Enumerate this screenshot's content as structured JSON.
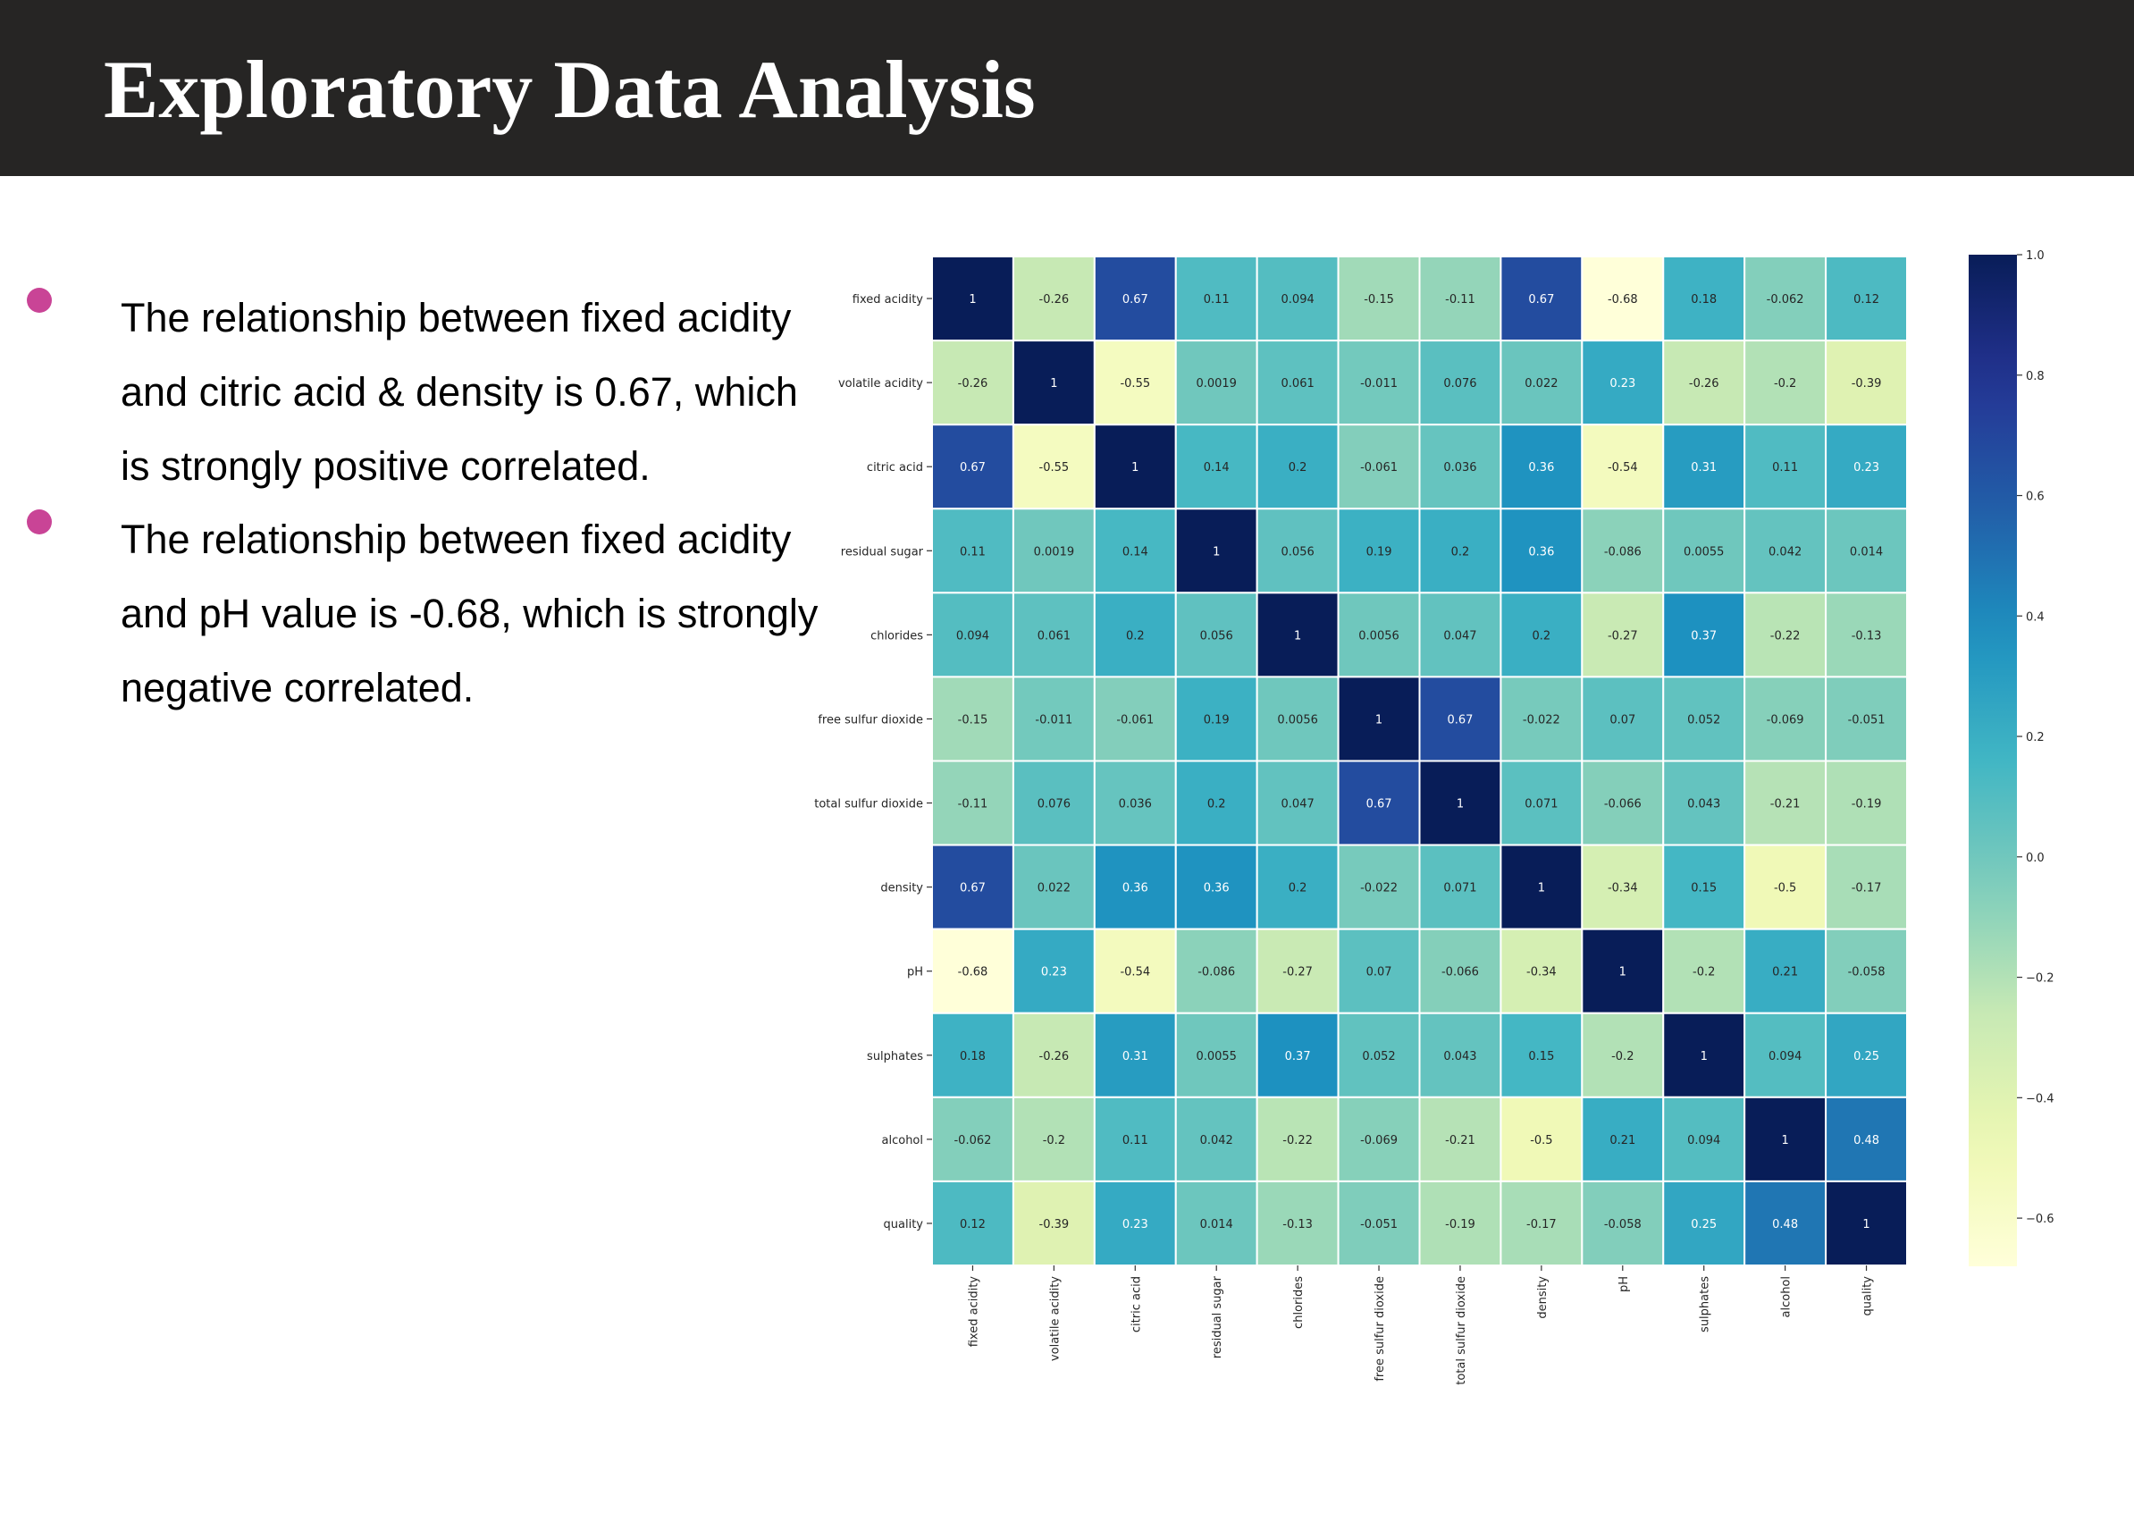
{
  "page": {
    "title": "Exploratory Data Analysis"
  },
  "bullets": [
    "The relationship between fixed acidity and citric acid & density  is 0.67, which is strongly positive correlated.",
    "The relationship between fixed acidity and pH value  is -0.68, which is strongly negative correlated."
  ],
  "colors": {
    "header_bg": "#262524",
    "bullet": "#c94496",
    "colormap": "YlGnBu"
  },
  "chart_data": {
    "type": "heatmap",
    "title": "",
    "variables": [
      "fixed acidity",
      "volatile acidity",
      "citric acid",
      "residual sugar",
      "chlorides",
      "free sulfur dioxide",
      "total sulfur dioxide",
      "density",
      "pH",
      "sulphates",
      "alcohol",
      "quality"
    ],
    "matrix": [
      [
        1,
        -0.26,
        0.67,
        0.11,
        0.094,
        -0.15,
        -0.11,
        0.67,
        -0.68,
        0.18,
        -0.062,
        0.12
      ],
      [
        -0.26,
        1,
        -0.55,
        0.0019,
        0.061,
        -0.011,
        0.076,
        0.022,
        0.23,
        -0.26,
        -0.2,
        -0.39
      ],
      [
        0.67,
        -0.55,
        1,
        0.14,
        0.2,
        -0.061,
        0.036,
        0.36,
        -0.54,
        0.31,
        0.11,
        0.23
      ],
      [
        0.11,
        0.0019,
        0.14,
        1,
        0.056,
        0.19,
        0.2,
        0.36,
        -0.086,
        0.0055,
        0.042,
        0.014
      ],
      [
        0.094,
        0.061,
        0.2,
        0.056,
        1,
        0.0056,
        0.047,
        0.2,
        -0.27,
        0.37,
        -0.22,
        -0.13
      ],
      [
        -0.15,
        -0.011,
        -0.061,
        0.19,
        0.0056,
        1,
        0.67,
        -0.022,
        0.07,
        0.052,
        -0.069,
        -0.051
      ],
      [
        -0.11,
        0.076,
        0.036,
        0.2,
        0.047,
        0.67,
        1,
        0.071,
        -0.066,
        0.043,
        -0.21,
        -0.19
      ],
      [
        0.67,
        0.022,
        0.36,
        0.36,
        0.2,
        -0.022,
        0.071,
        1,
        -0.34,
        0.15,
        -0.5,
        -0.17
      ],
      [
        -0.68,
        0.23,
        -0.54,
        -0.086,
        -0.27,
        0.07,
        -0.066,
        -0.34,
        1,
        -0.2,
        0.21,
        -0.058
      ],
      [
        0.18,
        -0.26,
        0.31,
        0.0055,
        0.37,
        0.052,
        0.043,
        0.15,
        -0.2,
        1,
        0.094,
        0.25
      ],
      [
        -0.062,
        -0.2,
        0.11,
        0.042,
        -0.22,
        -0.069,
        -0.21,
        -0.5,
        0.21,
        0.094,
        1,
        0.48
      ],
      [
        0.12,
        -0.39,
        0.23,
        0.014,
        -0.13,
        -0.051,
        -0.19,
        -0.17,
        -0.058,
        0.25,
        0.48,
        1
      ]
    ],
    "vmin": -0.68,
    "vmax": 1.0,
    "colorbar_ticks": [
      "1.0",
      "0.8",
      "0.6",
      "0.4",
      "0.2",
      "0.0",
      "−0.2",
      "−0.4",
      "−0.6"
    ],
    "colorbar_tick_values": [
      1.0,
      0.8,
      0.6,
      0.4,
      0.2,
      0.0,
      -0.2,
      -0.4,
      -0.6
    ],
    "legend_position": "right"
  }
}
